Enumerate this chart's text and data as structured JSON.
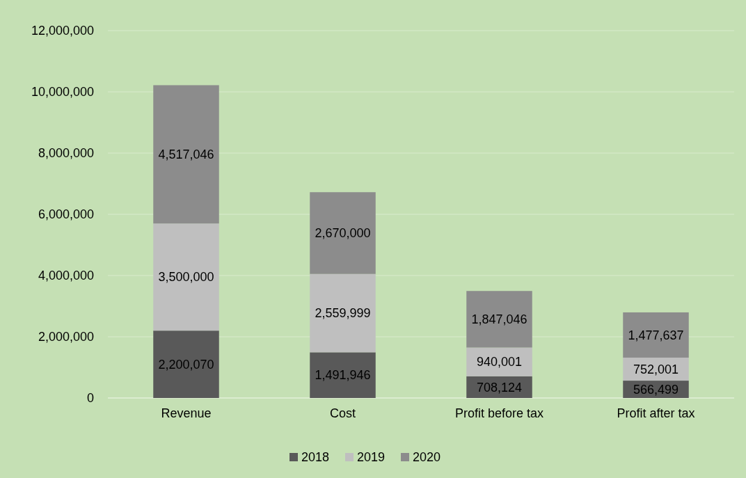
{
  "chart_data": {
    "type": "bar",
    "stacked": true,
    "categories": [
      "Revenue",
      "Cost",
      "Profit before tax",
      "Profit after tax"
    ],
    "series": [
      {
        "name": "2018",
        "color": "#595959",
        "values": [
          2200070,
          1491946,
          708124,
          566499
        ],
        "value_labels": [
          "2,200,070",
          "1,491,946",
          "708,124",
          "566,499"
        ]
      },
      {
        "name": "2019",
        "color": "#bfbfbf",
        "values": [
          3500000,
          2559999,
          940001,
          752001
        ],
        "value_labels": [
          "3,500,000",
          "2,559,999",
          "940,001",
          "752,001"
        ]
      },
      {
        "name": "2020",
        "color": "#8c8c8c",
        "values": [
          4517046,
          2670000,
          1847046,
          1477637
        ],
        "value_labels": [
          "4,517,046",
          "2,670,000",
          "1,847,046",
          "1,477,637"
        ]
      }
    ],
    "ylim": [
      0,
      12000000
    ],
    "yticks": [
      {
        "value": 0,
        "label": "0"
      },
      {
        "value": 2000000,
        "label": "2,000,000"
      },
      {
        "value": 4000000,
        "label": "4,000,000"
      },
      {
        "value": 6000000,
        "label": "6,000,000"
      },
      {
        "value": 8000000,
        "label": "8,000,000"
      },
      {
        "value": 10000000,
        "label": "10,000,000"
      },
      {
        "value": 12000000,
        "label": "12,000,000"
      }
    ],
    "grid": "y",
    "legend": "bottom"
  }
}
